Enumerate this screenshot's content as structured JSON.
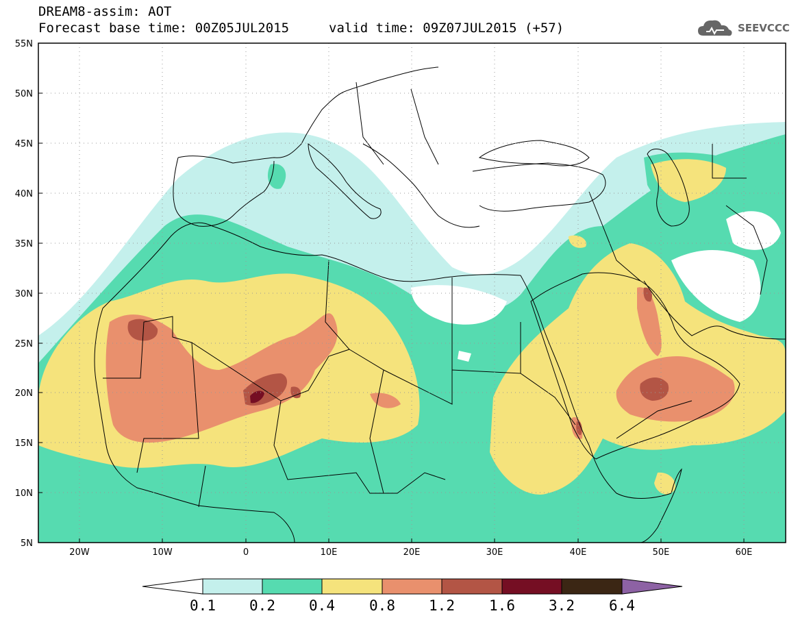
{
  "header": {
    "line1": "DREAM8-assim: AOT",
    "line2": "Forecast base time: 00Z05JUL2015",
    "valid": "valid time: 09Z07JUL2015 (+57)"
  },
  "logo": {
    "text": "SEEVCCC",
    "icon": "cloud-icon"
  },
  "map": {
    "lat_ticks": [
      "55N",
      "50N",
      "45N",
      "40N",
      "35N",
      "30N",
      "25N",
      "20N",
      "15N",
      "10N",
      "5N"
    ],
    "lon_ticks": [
      "20W",
      "10W",
      "0",
      "10E",
      "20E",
      "30E",
      "40E",
      "50E",
      "60E"
    ],
    "lat_range": [
      5,
      55
    ],
    "lon_range": [
      -25,
      65
    ]
  },
  "colorbar": {
    "labels": [
      "0.1",
      "0.2",
      "0.4",
      "0.8",
      "1.2",
      "1.6",
      "3.2",
      "6.4"
    ],
    "colors": [
      "#c4f0ec",
      "#56dbb0",
      "#f5e37c",
      "#e9906d",
      "#b35545",
      "#750e23",
      "#3b2614",
      "#8d62a4"
    ]
  },
  "colors": {
    "c1": "#c4f0ec",
    "c2": "#56dbb0",
    "c3": "#f5e37c",
    "c4": "#e9906d",
    "c5": "#b35545",
    "c6": "#750e23"
  }
}
